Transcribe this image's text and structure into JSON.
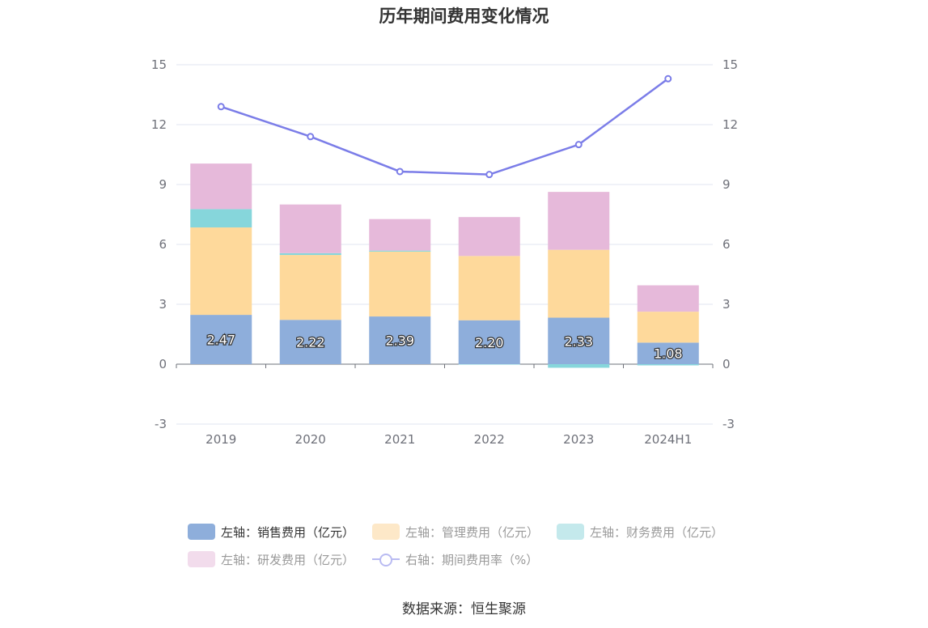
{
  "chart_data": {
    "type": "bar",
    "title": "历年期间费用变化情况",
    "categories": [
      "2019",
      "2020",
      "2021",
      "2022",
      "2023",
      "2024H1"
    ],
    "stacked": true,
    "y_left": {
      "min": -3,
      "max": 15,
      "ticks": [
        -3,
        0,
        3,
        6,
        9,
        12,
        15
      ]
    },
    "y_right": {
      "min": -3,
      "max": 15,
      "ticks": [
        -3,
        0,
        3,
        6,
        9,
        12,
        15
      ]
    },
    "grid": true,
    "legend_position": "bottom",
    "series": [
      {
        "name": "左轴：销售费用（亿元）",
        "type": "bar",
        "axis": "left",
        "color": "#8eaedb",
        "values": [
          2.47,
          2.22,
          2.39,
          2.2,
          2.33,
          1.08
        ],
        "labels": [
          "2.47",
          "2.22",
          "2.39",
          "2.20",
          "2.33",
          "1.08"
        ]
      },
      {
        "name": "左轴：管理费用（亿元）",
        "type": "bar",
        "axis": "left",
        "color": "#fed99b",
        "values": [
          4.38,
          3.25,
          3.25,
          3.22,
          3.4,
          1.55
        ]
      },
      {
        "name": "左轴：财务费用（亿元）",
        "type": "bar",
        "axis": "left",
        "color": "#86d6db",
        "values": [
          0.92,
          0.09,
          0.05,
          -0.02,
          -0.18,
          -0.06
        ]
      },
      {
        "name": "左轴：研发费用（亿元）",
        "type": "bar",
        "axis": "left",
        "color": "#e6b9da",
        "values": [
          2.28,
          2.44,
          1.58,
          1.95,
          2.9,
          1.32
        ]
      },
      {
        "name": "右轴：期间费用率（%）",
        "type": "line",
        "axis": "right",
        "color": "#7b7de8",
        "values": [
          12.9,
          11.4,
          9.65,
          9.5,
          11.0,
          14.3
        ]
      }
    ]
  },
  "legend": {
    "items": [
      {
        "label": "左轴：销售费用（亿元）",
        "color": "#8eaedb",
        "kind": "bar",
        "active": true
      },
      {
        "label": "左轴：管理费用（亿元）",
        "color": "#fde8c8",
        "kind": "bar",
        "active": false
      },
      {
        "label": "左轴：财务费用（亿元）",
        "color": "#c4e9ec",
        "kind": "bar",
        "active": false
      },
      {
        "label": "左轴：研发费用（亿元）",
        "color": "#f2dcec",
        "kind": "bar",
        "active": false
      },
      {
        "label": "右轴：期间费用率（%）",
        "color": "#b9bbf2",
        "kind": "line",
        "active": false
      }
    ]
  },
  "source": "数据来源：恒生聚源"
}
